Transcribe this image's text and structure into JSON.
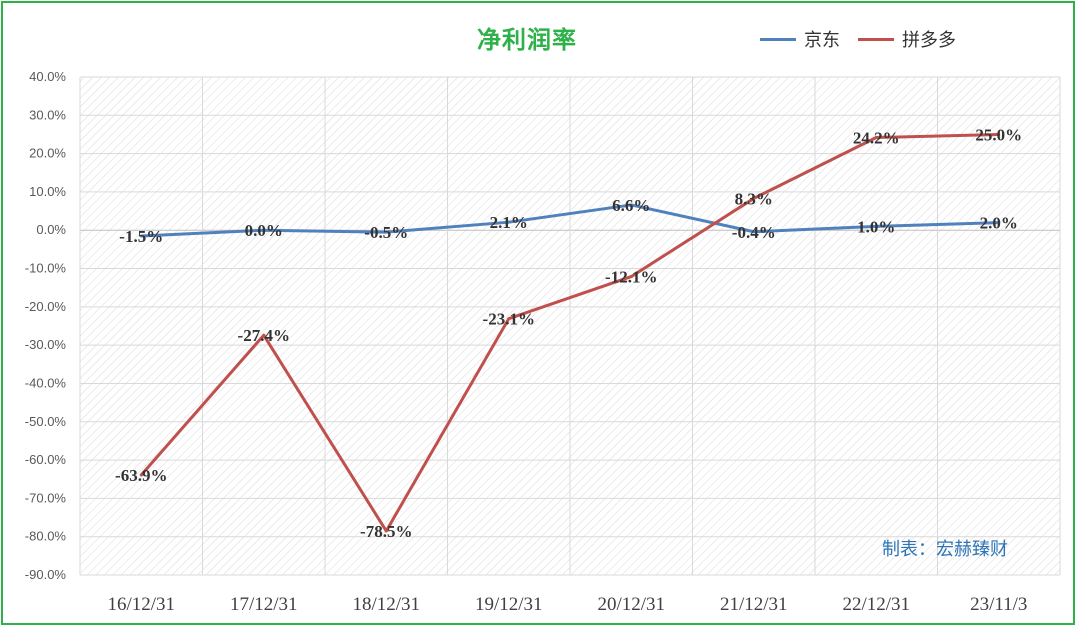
{
  "chart_data": {
    "type": "line",
    "title": "净利润率",
    "categories": [
      "16/12/31",
      "17/12/31",
      "18/12/31",
      "19/12/31",
      "20/12/31",
      "21/12/31",
      "22/12/31",
      "23/11/3"
    ],
    "ylim": [
      -90,
      40
    ],
    "y_ticks": [
      "40.0%",
      "30.0%",
      "20.0%",
      "10.0%",
      "0.0%",
      "-10.0%",
      "-20.0%",
      "-30.0%",
      "-40.0%",
      "-50.0%",
      "-60.0%",
      "-70.0%",
      "-80.0%",
      "-90.0%"
    ],
    "grid": true,
    "legend_position": "top-right",
    "series": [
      {
        "name": "京东",
        "color": "#4f81bd",
        "values": [
          -1.5,
          0.0,
          -0.5,
          2.1,
          6.6,
          -0.4,
          1.0,
          2.0
        ],
        "labels": [
          "-1.5%",
          "0.0%",
          "-0.5%",
          "2.1%",
          "6.6%",
          "-0.4%",
          "1.0%",
          "2.0%"
        ]
      },
      {
        "name": "拼多多",
        "color": "#c0504d",
        "values": [
          -63.9,
          -27.4,
          -78.5,
          -23.1,
          -12.1,
          8.3,
          24.2,
          25.0
        ],
        "labels": [
          "-63.9%",
          "-27.4%",
          "-78.5%",
          "-23.1%",
          "-12.1%",
          "8.3%",
          "24.2%",
          "25.0%"
        ]
      }
    ]
  },
  "watermark": "制表：宏赫臻财"
}
